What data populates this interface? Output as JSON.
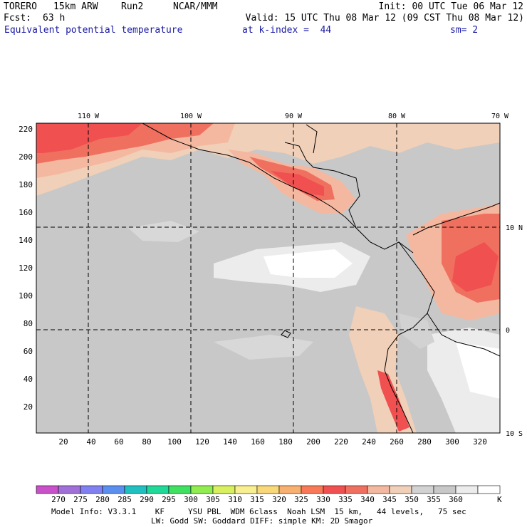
{
  "header": {
    "model": "TORERO",
    "resolution": "15km ARW",
    "run": "Run2",
    "org": "NCAR/MMM",
    "init": "Init: 00 UTC Tue 06 Mar 12",
    "fcst_label": "Fcst:",
    "fcst_value": "63 h",
    "valid": "Valid: 15 UTC Thu 08 Mar 12 (09 CST Thu 08 Mar 12)",
    "field": "Equivalent potential temperature",
    "level": "at k-index =  44",
    "smoothing": "sm= 2"
  },
  "map": {
    "lon_labels": [
      "110 W",
      "100 W",
      "90 W",
      "80 W",
      "70 W"
    ],
    "lat_labels": [
      "10 N",
      "0",
      "10 S"
    ],
    "x_ticks": [
      "20",
      "40",
      "60",
      "80",
      "100",
      "120",
      "140",
      "160",
      "180",
      "200",
      "220",
      "240",
      "260",
      "280",
      "300",
      "320"
    ],
    "y_ticks": [
      "220",
      "200",
      "180",
      "160",
      "140",
      "120",
      "100",
      "80",
      "60",
      "40",
      "20"
    ],
    "field_summary": {
      "cold_band_K": "345-360 over central Pacific",
      "warm_band_K": "330-340 near Central America and western Colombia"
    }
  },
  "colorbar": {
    "labels": [
      "270",
      "275",
      "280",
      "285",
      "290",
      "295",
      "300",
      "305",
      "310",
      "315",
      "320",
      "325",
      "330",
      "335",
      "340",
      "345",
      "350",
      "355",
      "360"
    ],
    "unit": "K",
    "colors": [
      "#c850c8",
      "#a070d8",
      "#8080f0",
      "#5a8ff0",
      "#20c0c0",
      "#20d898",
      "#40e060",
      "#90ec50",
      "#d8f060",
      "#f8f090",
      "#f8d878",
      "#f8b070",
      "#f87858",
      "#f05050",
      "#f07060",
      "#f4b8a0",
      "#f0d0b8",
      "#d2d2d2",
      "#c8c8c8",
      "#ececec",
      "#ffffff"
    ]
  },
  "footer": {
    "line1": "Model Info: V3.3.1    KF     YSU PBL  WDM 6class  Noah LSM  15 km,   44 levels,   75 sec",
    "line2": "LW: Godd SW: Goddard DIFF: simple KM: 2D Smagor"
  }
}
